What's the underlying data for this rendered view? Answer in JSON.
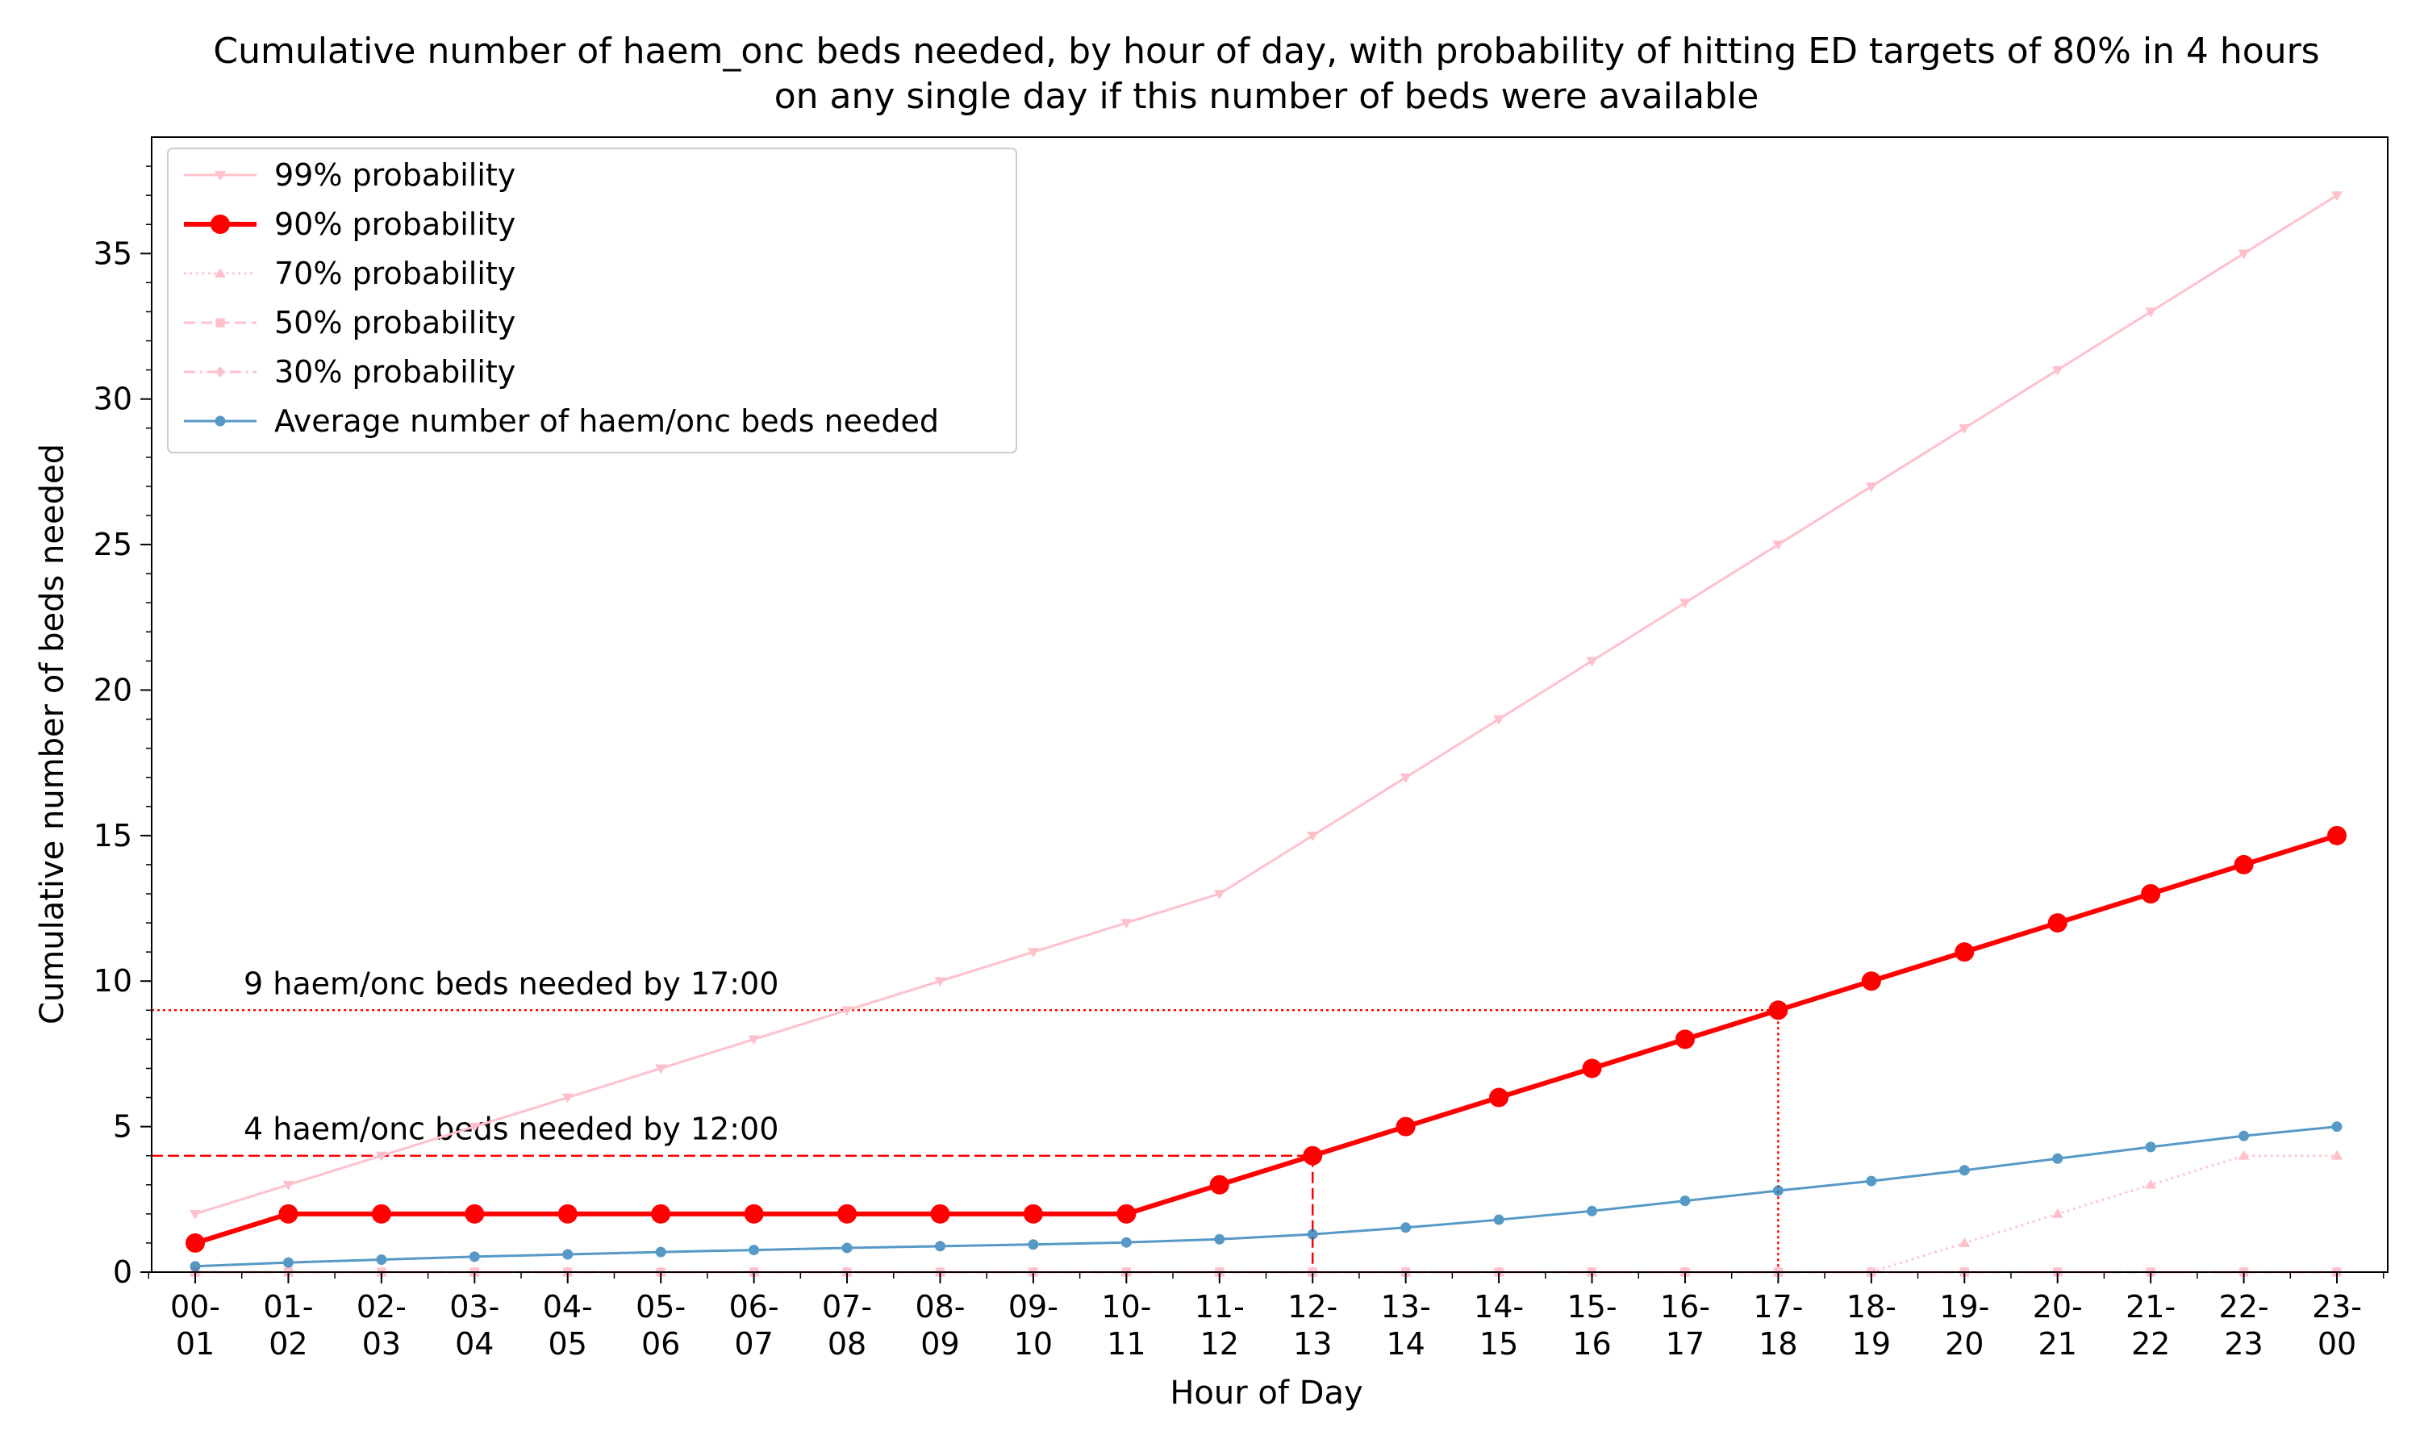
{
  "chart_data": {
    "type": "line",
    "title_line1": "Cumulative number of haem_onc beds needed, by hour of day, with probability of hitting ED targets of 80% in 4 hours",
    "title_line2": "on any single day if this number of beds were available",
    "xlabel": "Hour of Day",
    "ylabel": "Cumulative number of beds needed",
    "ylim": [
      0,
      39
    ],
    "yticks": [
      0,
      5,
      10,
      15,
      20,
      25,
      30,
      35
    ],
    "categories": [
      [
        "00-",
        "01"
      ],
      [
        "01-",
        "02"
      ],
      [
        "02-",
        "03"
      ],
      [
        "03-",
        "04"
      ],
      [
        "04-",
        "05"
      ],
      [
        "05-",
        "06"
      ],
      [
        "06-",
        "07"
      ],
      [
        "07-",
        "08"
      ],
      [
        "08-",
        "09"
      ],
      [
        "09-",
        "10"
      ],
      [
        "10-",
        "11"
      ],
      [
        "11-",
        "12"
      ],
      [
        "12-",
        "13"
      ],
      [
        "13-",
        "14"
      ],
      [
        "14-",
        "15"
      ],
      [
        "15-",
        "16"
      ],
      [
        "16-",
        "17"
      ],
      [
        "17-",
        "18"
      ],
      [
        "18-",
        "19"
      ],
      [
        "19-",
        "20"
      ],
      [
        "20-",
        "21"
      ],
      [
        "21-",
        "22"
      ],
      [
        "22-",
        "23"
      ],
      [
        "23-",
        "00"
      ]
    ],
    "grid": false,
    "legend_position": "top-left",
    "series": [
      {
        "name": "99% probability",
        "color": "#ffc0cb",
        "marker": "triangle-down",
        "style": "solid",
        "values": [
          2,
          3,
          4,
          5,
          6,
          7,
          8,
          9,
          10,
          11,
          12,
          13,
          15,
          17,
          19,
          21,
          23,
          25,
          27,
          29,
          31,
          33,
          35,
          37
        ]
      },
      {
        "name": "90% probability",
        "color": "#ff0000",
        "marker": "circle",
        "style": "solid-bold",
        "values": [
          1,
          2,
          2,
          2,
          2,
          2,
          2,
          2,
          2,
          2,
          2,
          3,
          4,
          5,
          6,
          7,
          8,
          9,
          10,
          11,
          12,
          13,
          14,
          15
        ]
      },
      {
        "name": "70% probability",
        "color": "#ffc0cb",
        "marker": "triangle-up",
        "style": "dotted",
        "values": [
          0,
          0,
          0,
          0,
          0,
          0,
          0,
          0,
          0,
          0,
          0,
          0,
          0,
          0,
          0,
          0,
          0,
          0,
          0,
          1,
          2,
          3,
          4,
          4
        ]
      },
      {
        "name": "50% probability",
        "color": "#ffc0cb",
        "marker": "square",
        "style": "dashed",
        "values": [
          0,
          0,
          0,
          0,
          0,
          0,
          0,
          0,
          0,
          0,
          0,
          0,
          0,
          0,
          0,
          0,
          0,
          0,
          0,
          0,
          0,
          0,
          0,
          0
        ]
      },
      {
        "name": "30% probability",
        "color": "#ffc0cb",
        "marker": "diamond",
        "style": "dashdot",
        "values": [
          0,
          0,
          0,
          0,
          0,
          0,
          0,
          0,
          0,
          0,
          0,
          0,
          0,
          0,
          0,
          0,
          0,
          0,
          0,
          0,
          0,
          0,
          0,
          0
        ]
      },
      {
        "name": "Average number of haem/onc beds needed",
        "color": "#1f77b4",
        "marker": "point",
        "style": "solid",
        "values": [
          0.2,
          0.33,
          0.43,
          0.53,
          0.61,
          0.69,
          0.76,
          0.83,
          0.89,
          0.95,
          1.02,
          1.13,
          1.3,
          1.53,
          1.8,
          2.1,
          2.45,
          2.8,
          3.13,
          3.5,
          3.9,
          4.3,
          4.68,
          5.0
        ]
      }
    ],
    "annotations": [
      {
        "text": "4 haem/onc beds needed by 12:00",
        "y": 4,
        "x_index": 12,
        "line_style": "dashed"
      },
      {
        "text": "9 haem/onc beds needed by 17:00",
        "y": 9,
        "x_index": 17,
        "line_style": "dotted"
      }
    ]
  }
}
